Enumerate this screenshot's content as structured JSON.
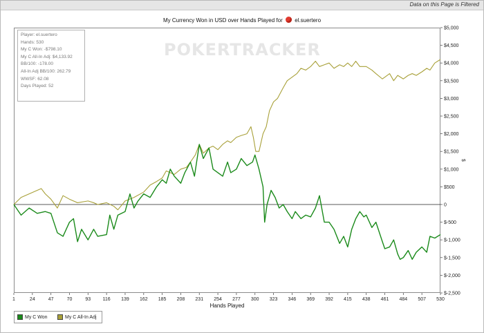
{
  "filter_notice": "Data on this Page is Filtered",
  "title_prefix": "My Currency Won in USD over Hands Played for",
  "player_name": "el.suertero",
  "watermark": "POKERTRACKER",
  "stats": [
    "Player: el.suertero",
    "Hands: 530",
    "My C Won: -$798.10",
    "My C All-In Adj: $4,133.92",
    "BB/100: -178.00",
    "All-In Adj BB/100: 262.79",
    "WWSF: 62.08",
    "Days Played: 52"
  ],
  "chart_data": {
    "type": "line",
    "title": "My Currency Won in USD over Hands Played for el.suertero",
    "xlabel": "Hands Played",
    "ylabel": "$",
    "xlim": [
      1,
      530
    ],
    "ylim": [
      -2500,
      5000
    ],
    "x_ticks": [
      "1",
      "24",
      "47",
      "70",
      "93",
      "116",
      "139",
      "162",
      "185",
      "208",
      "231",
      "254",
      "277",
      "300",
      "323",
      "346",
      "369",
      "392",
      "415",
      "438",
      "461",
      "484",
      "507",
      "530"
    ],
    "y_ticks": [
      "$5,000",
      "$4,500",
      "$4,000",
      "$3,500",
      "$3,000",
      "$2,500",
      "$2,000",
      "$1,500",
      "$1,000",
      "$500",
      "0",
      "$-500",
      "$-1,000",
      "$-1,500",
      "$-2,000",
      "$-2,500"
    ],
    "zero_line": true,
    "grid": false,
    "legend_position": "bottom-left",
    "series": [
      {
        "name": "My C Won",
        "color": "#1a8a1a",
        "points": [
          [
            1,
            0
          ],
          [
            10,
            -300
          ],
          [
            20,
            -100
          ],
          [
            30,
            -250
          ],
          [
            40,
            -200
          ],
          [
            47,
            -250
          ],
          [
            55,
            -800
          ],
          [
            62,
            -900
          ],
          [
            70,
            -500
          ],
          [
            75,
            -400
          ],
          [
            80,
            -1050
          ],
          [
            85,
            -700
          ],
          [
            93,
            -1000
          ],
          [
            100,
            -700
          ],
          [
            105,
            -900
          ],
          [
            116,
            -850
          ],
          [
            120,
            -300
          ],
          [
            125,
            -700
          ],
          [
            130,
            -300
          ],
          [
            139,
            -200
          ],
          [
            145,
            300
          ],
          [
            150,
            -100
          ],
          [
            155,
            100
          ],
          [
            162,
            300
          ],
          [
            170,
            200
          ],
          [
            178,
            500
          ],
          [
            185,
            700
          ],
          [
            190,
            600
          ],
          [
            195,
            1000
          ],
          [
            200,
            800
          ],
          [
            208,
            600
          ],
          [
            213,
            900
          ],
          [
            220,
            1200
          ],
          [
            225,
            800
          ],
          [
            231,
            1700
          ],
          [
            236,
            1300
          ],
          [
            243,
            1600
          ],
          [
            248,
            1000
          ],
          [
            254,
            900
          ],
          [
            260,
            800
          ],
          [
            266,
            1200
          ],
          [
            270,
            900
          ],
          [
            277,
            1000
          ],
          [
            283,
            1300
          ],
          [
            290,
            1100
          ],
          [
            297,
            1200
          ],
          [
            300,
            1400
          ],
          [
            305,
            1000
          ],
          [
            310,
            500
          ],
          [
            312,
            -500
          ],
          [
            315,
            0
          ],
          [
            320,
            400
          ],
          [
            325,
            200
          ],
          [
            330,
            -100
          ],
          [
            335,
            0
          ],
          [
            340,
            -200
          ],
          [
            346,
            -400
          ],
          [
            350,
            -200
          ],
          [
            357,
            -400
          ],
          [
            363,
            -300
          ],
          [
            369,
            -350
          ],
          [
            375,
            -100
          ],
          [
            380,
            250
          ],
          [
            386,
            -500
          ],
          [
            392,
            -500
          ],
          [
            398,
            -700
          ],
          [
            405,
            -1100
          ],
          [
            410,
            -900
          ],
          [
            415,
            -1200
          ],
          [
            420,
            -700
          ],
          [
            425,
            -400
          ],
          [
            430,
            -200
          ],
          [
            435,
            -350
          ],
          [
            438,
            -300
          ],
          [
            445,
            -650
          ],
          [
            450,
            -500
          ],
          [
            458,
            -1050
          ],
          [
            461,
            -1250
          ],
          [
            467,
            -1200
          ],
          [
            472,
            -1000
          ],
          [
            477,
            -1400
          ],
          [
            480,
            -1550
          ],
          [
            484,
            -1500
          ],
          [
            490,
            -1300
          ],
          [
            495,
            -1550
          ],
          [
            500,
            -1350
          ],
          [
            507,
            -1200
          ],
          [
            513,
            -1350
          ],
          [
            517,
            -900
          ],
          [
            523,
            -950
          ],
          [
            530,
            -850
          ]
        ]
      },
      {
        "name": "My C All-In Adj",
        "color": "#a8a038",
        "points": [
          [
            1,
            0
          ],
          [
            10,
            200
          ],
          [
            20,
            300
          ],
          [
            30,
            400
          ],
          [
            35,
            450
          ],
          [
            40,
            300
          ],
          [
            47,
            150
          ],
          [
            55,
            -100
          ],
          [
            62,
            250
          ],
          [
            70,
            150
          ],
          [
            80,
            50
          ],
          [
            93,
            100
          ],
          [
            100,
            50
          ],
          [
            105,
            0
          ],
          [
            116,
            50
          ],
          [
            125,
            -50
          ],
          [
            130,
            -150
          ],
          [
            139,
            100
          ],
          [
            150,
            200
          ],
          [
            162,
            350
          ],
          [
            170,
            550
          ],
          [
            178,
            650
          ],
          [
            185,
            750
          ],
          [
            190,
            950
          ],
          [
            200,
            850
          ],
          [
            208,
            1000
          ],
          [
            215,
            1050
          ],
          [
            220,
            1200
          ],
          [
            226,
            1400
          ],
          [
            231,
            1700
          ],
          [
            236,
            1450
          ],
          [
            243,
            1600
          ],
          [
            248,
            1650
          ],
          [
            254,
            1550
          ],
          [
            260,
            1700
          ],
          [
            266,
            1800
          ],
          [
            270,
            1750
          ],
          [
            277,
            1900
          ],
          [
            283,
            1950
          ],
          [
            290,
            2000
          ],
          [
            295,
            2200
          ],
          [
            298,
            1900
          ],
          [
            301,
            1500
          ],
          [
            305,
            1500
          ],
          [
            310,
            2000
          ],
          [
            314,
            2200
          ],
          [
            318,
            2650
          ],
          [
            323,
            2900
          ],
          [
            328,
            3000
          ],
          [
            335,
            3300
          ],
          [
            340,
            3500
          ],
          [
            346,
            3600
          ],
          [
            352,
            3700
          ],
          [
            357,
            3850
          ],
          [
            363,
            3800
          ],
          [
            369,
            3900
          ],
          [
            375,
            4050
          ],
          [
            380,
            3900
          ],
          [
            386,
            3950
          ],
          [
            392,
            4000
          ],
          [
            398,
            3850
          ],
          [
            405,
            3950
          ],
          [
            410,
            3900
          ],
          [
            415,
            4000
          ],
          [
            420,
            3900
          ],
          [
            425,
            4050
          ],
          [
            430,
            3900
          ],
          [
            438,
            3900
          ],
          [
            445,
            3800
          ],
          [
            450,
            3700
          ],
          [
            458,
            3550
          ],
          [
            461,
            3600
          ],
          [
            467,
            3700
          ],
          [
            472,
            3500
          ],
          [
            477,
            3650
          ],
          [
            484,
            3550
          ],
          [
            490,
            3650
          ],
          [
            495,
            3700
          ],
          [
            500,
            3650
          ],
          [
            507,
            3750
          ],
          [
            513,
            3850
          ],
          [
            517,
            3800
          ],
          [
            523,
            4000
          ],
          [
            530,
            4100
          ]
        ]
      }
    ]
  }
}
